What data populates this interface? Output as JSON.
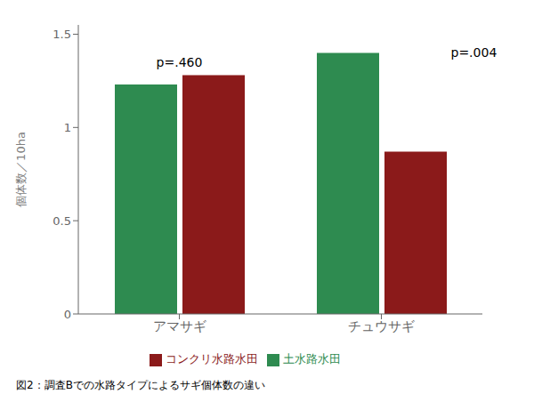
{
  "chart_data": {
    "type": "bar",
    "categories": [
      "アマサギ",
      "チュウサギ"
    ],
    "series": [
      {
        "name": "土水路水田",
        "color": "#2E8B50",
        "values": [
          1.23,
          1.4
        ]
      },
      {
        "name": "コンクリ水路水田",
        "color": "#8B1A1A",
        "values": [
          1.28,
          0.87
        ]
      }
    ],
    "y_label": "個体数／10ha",
    "ylim": [
      0,
      1.55
    ],
    "yticks": [
      0,
      0.5,
      1,
      1.5
    ],
    "annotations": [
      {
        "text": "p=.460",
        "category": "アマサギ",
        "y": 1.31
      },
      {
        "text": "p=.004",
        "category": "チュウサギ",
        "y": 1.43
      }
    ],
    "caption": "図2：調査Bでの水路タイプによるサギ個体数の違い",
    "grid": false,
    "legend": "bottom"
  }
}
